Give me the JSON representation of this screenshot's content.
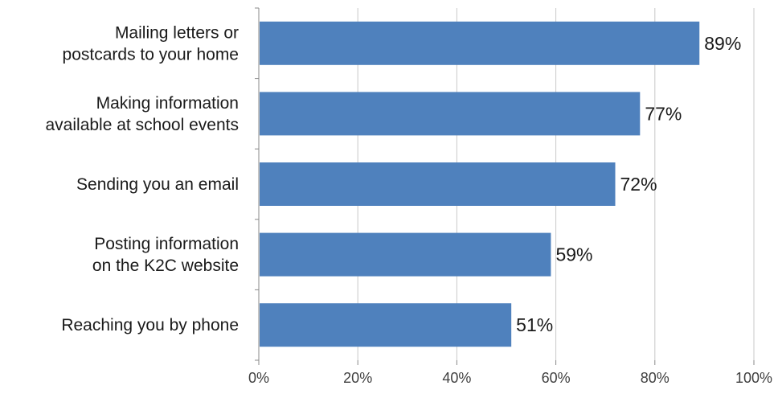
{
  "chart_data": {
    "type": "bar",
    "orientation": "horizontal",
    "title": "",
    "xlabel": "",
    "ylabel": "",
    "categories": [
      [
        "Mailing letters or",
        "postcards to your home"
      ],
      [
        "Making information",
        "available at school events"
      ],
      [
        "Sending you an email"
      ],
      [
        "Posting information",
        "on the K2C website"
      ],
      [
        "Reaching you by phone"
      ]
    ],
    "values": [
      89,
      77,
      72,
      59,
      51
    ],
    "value_labels": [
      "89%",
      "77%",
      "72%",
      "59%",
      "51%"
    ],
    "xlim": [
      0,
      100
    ],
    "xticks": [
      0,
      20,
      40,
      60,
      80,
      100
    ],
    "xtick_labels": [
      "0%",
      "20%",
      "40%",
      "60%",
      "80%",
      "100%"
    ],
    "grid": "vertical",
    "legend": "none",
    "colors": {
      "bar": "#4f81bd",
      "grid": "#c8c8c8",
      "axis": "#888888"
    }
  }
}
